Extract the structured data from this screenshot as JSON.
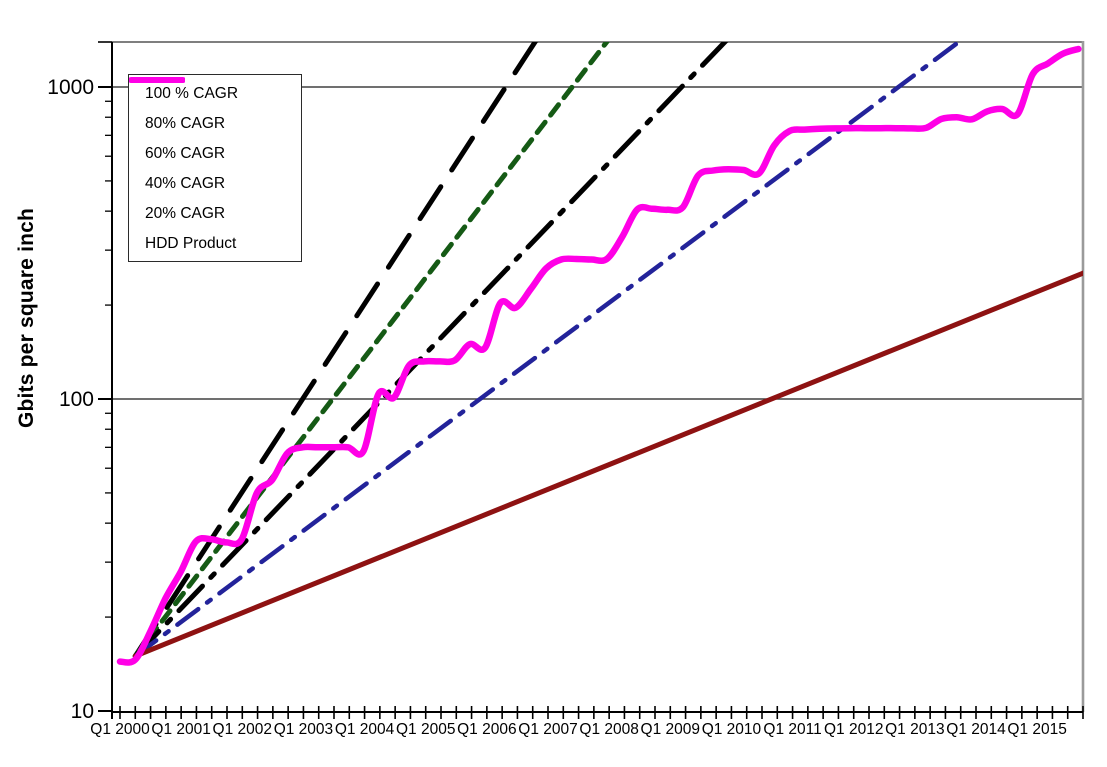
{
  "chart_data": {
    "type": "line",
    "title": "",
    "xlabel": "",
    "ylabel": "Gbits per square inch",
    "y_scale": "log",
    "ylim": [
      10,
      1400
    ],
    "y_tick_labels": [
      "10",
      "100",
      "1000"
    ],
    "y_tick_values": [
      10,
      100,
      1000
    ],
    "grid_y": [
      100,
      1000
    ],
    "x_unit": "quarter",
    "x_quarters_total": 64,
    "x_tick_labels": [
      "Q1 2000",
      "Q1 2001",
      "Q1 2002",
      "Q1 2003",
      "Q1 2004",
      "Q1 2005",
      "Q1 2006",
      "Q1 2007",
      "Q1 2008",
      "Q1 2009",
      "Q1 2010",
      "Q1 2011",
      "Q1 2012",
      "Q1 2013",
      "Q1 2014",
      "Q1 2015"
    ],
    "legend_position": "top-left",
    "series": [
      {
        "name": "100 % CAGR",
        "kind": "cagr_reference",
        "cagr_percent": 100,
        "start_quarter_index": 1,
        "start_value_gbits_per_in2": 15,
        "color": "#000000",
        "dash": [
          38,
          20
        ],
        "stroke_width": 5
      },
      {
        "name": "80% CAGR",
        "kind": "cagr_reference",
        "cagr_percent": 80,
        "start_quarter_index": 1,
        "start_value_gbits_per_in2": 15,
        "color": "#155a15",
        "dash": [
          13,
          9
        ],
        "stroke_width": 5
      },
      {
        "name": "60% CAGR",
        "kind": "cagr_reference",
        "cagr_percent": 60,
        "start_quarter_index": 1,
        "start_value_gbits_per_in2": 15,
        "color": "#000000",
        "dash": [
          34,
          12,
          5,
          12
        ],
        "stroke_width": 5
      },
      {
        "name": "40% CAGR",
        "kind": "cagr_reference",
        "cagr_percent": 40,
        "start_quarter_index": 1,
        "start_value_gbits_per_in2": 15,
        "color": "#23239a",
        "dash": [
          26,
          11,
          4.5,
          11
        ],
        "stroke_width": 4.5
      },
      {
        "name": "20% CAGR",
        "kind": "cagr_reference",
        "cagr_percent": 20,
        "start_quarter_index": 1,
        "start_value_gbits_per_in2": 15,
        "color": "#8e1212",
        "dash": [],
        "stroke_width": 5
      },
      {
        "name": "HDD Product",
        "kind": "measured",
        "color": "#ff00e6",
        "stroke_width": 6.5,
        "dash": [],
        "first_quarter_label": "Q1 2000",
        "values_gbits_per_in2": [
          14.4,
          14.6,
          18,
          23,
          28,
          35,
          35.5,
          34.7,
          35.5,
          50,
          55,
          67,
          70,
          70,
          70,
          70,
          68,
          104,
          101,
          128,
          132,
          132,
          133,
          150,
          146,
          203,
          196,
          225,
          262,
          280,
          281,
          280,
          281,
          330,
          405,
          407,
          404,
          412,
          520,
          540,
          545,
          542,
          528,
          650,
          722,
          730,
          735,
          737,
          738,
          738,
          738,
          738,
          737,
          740,
          790,
          800,
          788,
          835,
          850,
          818,
          1100,
          1190,
          1280,
          1324
        ]
      }
    ]
  }
}
